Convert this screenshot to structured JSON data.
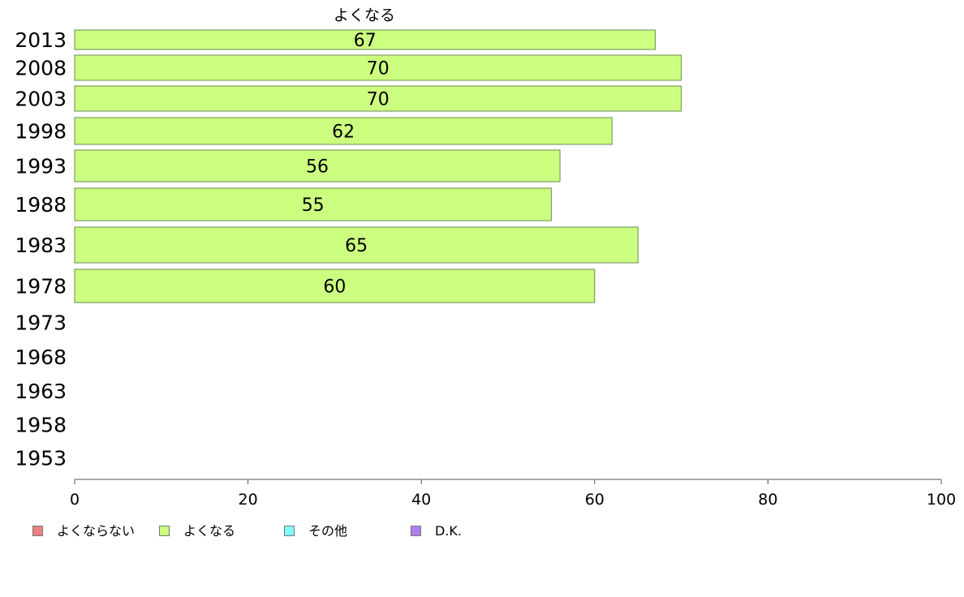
{
  "chart_data": {
    "type": "bar",
    "orientation": "horizontal",
    "categories": [
      "2013",
      "2008",
      "2003",
      "1998",
      "1993",
      "1988",
      "1983",
      "1978",
      "1973",
      "1968",
      "1963",
      "1958",
      "1953"
    ],
    "series": [
      {
        "name": "よくなる",
        "values": [
          67,
          70,
          70,
          62,
          56,
          55,
          65,
          60,
          null,
          null,
          null,
          null,
          null
        ],
        "color": "#ccff80"
      }
    ],
    "series_title": "よくなる",
    "xlim": [
      0,
      100
    ],
    "xticks": [
      "0",
      "20",
      "40",
      "60",
      "80",
      "100"
    ],
    "legend": {
      "placement": "bottom-left",
      "entries": [
        {
          "label": "よくならない",
          "color": "#f08080"
        },
        {
          "label": "よくなる",
          "color": "#ccff80"
        },
        {
          "label": "その他",
          "color": "#80ffff"
        },
        {
          "label": "D.K.",
          "color": "#b080f0"
        }
      ]
    },
    "grid": false
  }
}
